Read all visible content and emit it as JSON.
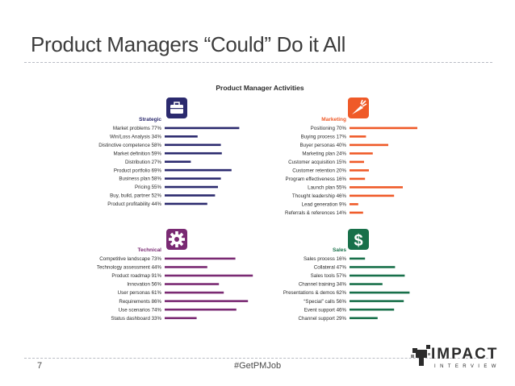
{
  "slide": {
    "title": "Product Managers “Could” Do it All",
    "page_number": "7",
    "hashtag": "#GetPMJob",
    "logo_word": "IMPACT",
    "logo_sub": "INTERVIEW"
  },
  "colors": {
    "strategic": "#2b2a6e",
    "marketing": "#ef5a28",
    "technical": "#7a2a73",
    "sales": "#18704a"
  },
  "chart_data": {
    "type": "bar",
    "title": "Product Manager Activities",
    "panels": [
      {
        "name": "Strategic",
        "icon": "briefcase-icon",
        "color": "#2b2a6e",
        "bars": [
          {
            "label": "Market problems",
            "value": 77
          },
          {
            "label": "Win/Loss Analysis",
            "value": 34
          },
          {
            "label": "Distinctive competence",
            "value": 58
          },
          {
            "label": "Market definition",
            "value": 59
          },
          {
            "label": "Distribution",
            "value": 27
          },
          {
            "label": "Product portfolio",
            "value": 69
          },
          {
            "label": "Business plan",
            "value": 58
          },
          {
            "label": "Pricing",
            "value": 55
          },
          {
            "label": "Buy, build, partner",
            "value": 52
          },
          {
            "label": "Product profitability",
            "value": 44
          }
        ]
      },
      {
        "name": "Marketing",
        "icon": "carrot-icon",
        "color": "#ef5a28",
        "bars": [
          {
            "label": "Positioning",
            "value": 70
          },
          {
            "label": "Buying process",
            "value": 17
          },
          {
            "label": "Buyer personas",
            "value": 40
          },
          {
            "label": "Marketing plan",
            "value": 24
          },
          {
            "label": "Customer acquisition",
            "value": 15
          },
          {
            "label": "Customer retention",
            "value": 20
          },
          {
            "label": "Program effectiveness",
            "value": 16
          },
          {
            "label": "Launch plan",
            "value": 55
          },
          {
            "label": "Thought leadership",
            "value": 46
          },
          {
            "label": "Lead generation",
            "value": 9
          },
          {
            "label": "Referrals & references",
            "value": 14
          }
        ]
      },
      {
        "name": "Technical",
        "icon": "gear-icon",
        "color": "#7a2a73",
        "bars": [
          {
            "label": "Competitive landscape",
            "value": 73
          },
          {
            "label": "Technology assessment",
            "value": 44
          },
          {
            "label": "Product roadmap",
            "value": 91
          },
          {
            "label": "Innovation",
            "value": 56
          },
          {
            "label": "User personas",
            "value": 61
          },
          {
            "label": "Requirements",
            "value": 86
          },
          {
            "label": "Use scenarios",
            "value": 74
          },
          {
            "label": "Status dashboard",
            "value": 33
          }
        ]
      },
      {
        "name": "Sales",
        "icon": "dollar-icon",
        "color": "#18704a",
        "bars": [
          {
            "label": "Sales process",
            "value": 16
          },
          {
            "label": "Collateral",
            "value": 47
          },
          {
            "label": "Sales tools",
            "value": 57
          },
          {
            "label": "Channel training",
            "value": 34
          },
          {
            "label": "Presentations & demos",
            "value": 62
          },
          {
            "label": "“Special” calls",
            "value": 56
          },
          {
            "label": "Event support",
            "value": 46
          },
          {
            "label": "Channel support",
            "value": 29
          }
        ]
      }
    ]
  }
}
